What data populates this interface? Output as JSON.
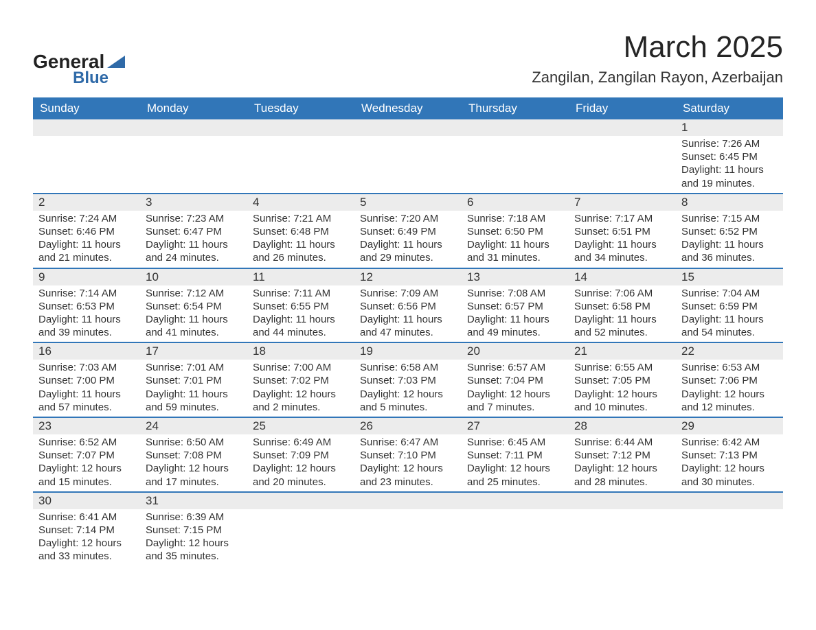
{
  "logo": {
    "text_main": "General",
    "text_sub": "Blue",
    "triangle_color": "#2f6aa8"
  },
  "title": "March 2025",
  "location": "Zangilan, Zangilan Rayon, Azerbaijan",
  "colors": {
    "header_bg": "#3176b8",
    "header_text": "#ffffff",
    "band_bg": "#ececec",
    "text": "#333333",
    "row_border": "#3176b8"
  },
  "typography": {
    "title_fontsize": 44,
    "location_fontsize": 22,
    "header_fontsize": 17,
    "daynum_fontsize": 17,
    "content_fontsize": 15
  },
  "layout": {
    "columns": 7,
    "rows": 6,
    "first_day_column_index": 6
  },
  "day_headers": [
    "Sunday",
    "Monday",
    "Tuesday",
    "Wednesday",
    "Thursday",
    "Friday",
    "Saturday"
  ],
  "weeks": [
    [
      null,
      null,
      null,
      null,
      null,
      null,
      {
        "day": "1",
        "sunrise": "Sunrise: 7:26 AM",
        "sunset": "Sunset: 6:45 PM",
        "daylight1": "Daylight: 11 hours",
        "daylight2": "and 19 minutes."
      }
    ],
    [
      {
        "day": "2",
        "sunrise": "Sunrise: 7:24 AM",
        "sunset": "Sunset: 6:46 PM",
        "daylight1": "Daylight: 11 hours",
        "daylight2": "and 21 minutes."
      },
      {
        "day": "3",
        "sunrise": "Sunrise: 7:23 AM",
        "sunset": "Sunset: 6:47 PM",
        "daylight1": "Daylight: 11 hours",
        "daylight2": "and 24 minutes."
      },
      {
        "day": "4",
        "sunrise": "Sunrise: 7:21 AM",
        "sunset": "Sunset: 6:48 PM",
        "daylight1": "Daylight: 11 hours",
        "daylight2": "and 26 minutes."
      },
      {
        "day": "5",
        "sunrise": "Sunrise: 7:20 AM",
        "sunset": "Sunset: 6:49 PM",
        "daylight1": "Daylight: 11 hours",
        "daylight2": "and 29 minutes."
      },
      {
        "day": "6",
        "sunrise": "Sunrise: 7:18 AM",
        "sunset": "Sunset: 6:50 PM",
        "daylight1": "Daylight: 11 hours",
        "daylight2": "and 31 minutes."
      },
      {
        "day": "7",
        "sunrise": "Sunrise: 7:17 AM",
        "sunset": "Sunset: 6:51 PM",
        "daylight1": "Daylight: 11 hours",
        "daylight2": "and 34 minutes."
      },
      {
        "day": "8",
        "sunrise": "Sunrise: 7:15 AM",
        "sunset": "Sunset: 6:52 PM",
        "daylight1": "Daylight: 11 hours",
        "daylight2": "and 36 minutes."
      }
    ],
    [
      {
        "day": "9",
        "sunrise": "Sunrise: 7:14 AM",
        "sunset": "Sunset: 6:53 PM",
        "daylight1": "Daylight: 11 hours",
        "daylight2": "and 39 minutes."
      },
      {
        "day": "10",
        "sunrise": "Sunrise: 7:12 AM",
        "sunset": "Sunset: 6:54 PM",
        "daylight1": "Daylight: 11 hours",
        "daylight2": "and 41 minutes."
      },
      {
        "day": "11",
        "sunrise": "Sunrise: 7:11 AM",
        "sunset": "Sunset: 6:55 PM",
        "daylight1": "Daylight: 11 hours",
        "daylight2": "and 44 minutes."
      },
      {
        "day": "12",
        "sunrise": "Sunrise: 7:09 AM",
        "sunset": "Sunset: 6:56 PM",
        "daylight1": "Daylight: 11 hours",
        "daylight2": "and 47 minutes."
      },
      {
        "day": "13",
        "sunrise": "Sunrise: 7:08 AM",
        "sunset": "Sunset: 6:57 PM",
        "daylight1": "Daylight: 11 hours",
        "daylight2": "and 49 minutes."
      },
      {
        "day": "14",
        "sunrise": "Sunrise: 7:06 AM",
        "sunset": "Sunset: 6:58 PM",
        "daylight1": "Daylight: 11 hours",
        "daylight2": "and 52 minutes."
      },
      {
        "day": "15",
        "sunrise": "Sunrise: 7:04 AM",
        "sunset": "Sunset: 6:59 PM",
        "daylight1": "Daylight: 11 hours",
        "daylight2": "and 54 minutes."
      }
    ],
    [
      {
        "day": "16",
        "sunrise": "Sunrise: 7:03 AM",
        "sunset": "Sunset: 7:00 PM",
        "daylight1": "Daylight: 11 hours",
        "daylight2": "and 57 minutes."
      },
      {
        "day": "17",
        "sunrise": "Sunrise: 7:01 AM",
        "sunset": "Sunset: 7:01 PM",
        "daylight1": "Daylight: 11 hours",
        "daylight2": "and 59 minutes."
      },
      {
        "day": "18",
        "sunrise": "Sunrise: 7:00 AM",
        "sunset": "Sunset: 7:02 PM",
        "daylight1": "Daylight: 12 hours",
        "daylight2": "and 2 minutes."
      },
      {
        "day": "19",
        "sunrise": "Sunrise: 6:58 AM",
        "sunset": "Sunset: 7:03 PM",
        "daylight1": "Daylight: 12 hours",
        "daylight2": "and 5 minutes."
      },
      {
        "day": "20",
        "sunrise": "Sunrise: 6:57 AM",
        "sunset": "Sunset: 7:04 PM",
        "daylight1": "Daylight: 12 hours",
        "daylight2": "and 7 minutes."
      },
      {
        "day": "21",
        "sunrise": "Sunrise: 6:55 AM",
        "sunset": "Sunset: 7:05 PM",
        "daylight1": "Daylight: 12 hours",
        "daylight2": "and 10 minutes."
      },
      {
        "day": "22",
        "sunrise": "Sunrise: 6:53 AM",
        "sunset": "Sunset: 7:06 PM",
        "daylight1": "Daylight: 12 hours",
        "daylight2": "and 12 minutes."
      }
    ],
    [
      {
        "day": "23",
        "sunrise": "Sunrise: 6:52 AM",
        "sunset": "Sunset: 7:07 PM",
        "daylight1": "Daylight: 12 hours",
        "daylight2": "and 15 minutes."
      },
      {
        "day": "24",
        "sunrise": "Sunrise: 6:50 AM",
        "sunset": "Sunset: 7:08 PM",
        "daylight1": "Daylight: 12 hours",
        "daylight2": "and 17 minutes."
      },
      {
        "day": "25",
        "sunrise": "Sunrise: 6:49 AM",
        "sunset": "Sunset: 7:09 PM",
        "daylight1": "Daylight: 12 hours",
        "daylight2": "and 20 minutes."
      },
      {
        "day": "26",
        "sunrise": "Sunrise: 6:47 AM",
        "sunset": "Sunset: 7:10 PM",
        "daylight1": "Daylight: 12 hours",
        "daylight2": "and 23 minutes."
      },
      {
        "day": "27",
        "sunrise": "Sunrise: 6:45 AM",
        "sunset": "Sunset: 7:11 PM",
        "daylight1": "Daylight: 12 hours",
        "daylight2": "and 25 minutes."
      },
      {
        "day": "28",
        "sunrise": "Sunrise: 6:44 AM",
        "sunset": "Sunset: 7:12 PM",
        "daylight1": "Daylight: 12 hours",
        "daylight2": "and 28 minutes."
      },
      {
        "day": "29",
        "sunrise": "Sunrise: 6:42 AM",
        "sunset": "Sunset: 7:13 PM",
        "daylight1": "Daylight: 12 hours",
        "daylight2": "and 30 minutes."
      }
    ],
    [
      {
        "day": "30",
        "sunrise": "Sunrise: 6:41 AM",
        "sunset": "Sunset: 7:14 PM",
        "daylight1": "Daylight: 12 hours",
        "daylight2": "and 33 minutes."
      },
      {
        "day": "31",
        "sunrise": "Sunrise: 6:39 AM",
        "sunset": "Sunset: 7:15 PM",
        "daylight1": "Daylight: 12 hours",
        "daylight2": "and 35 minutes."
      },
      null,
      null,
      null,
      null,
      null
    ]
  ]
}
